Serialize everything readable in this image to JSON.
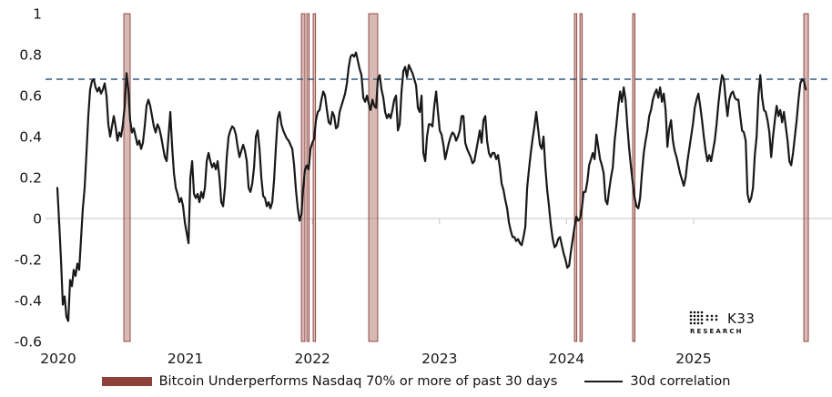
{
  "page": {
    "background": "#ffffff"
  },
  "legend": {
    "band_label": "Bitcoin Underperforms Nasdaq 70% or more of past 30 days",
    "line_label": "30d correlation"
  },
  "branding": {
    "logo_text": "K33",
    "logo_subtext": "RESEARCH"
  },
  "chart_data": {
    "type": "line",
    "title": "",
    "xlabel": "",
    "ylabel": "",
    "grid": "zero-line-only",
    "legend_position": "bottom-center",
    "x_axis": {
      "ticks": [
        2020,
        2021,
        2022,
        2023,
        2024,
        2025
      ],
      "tick_labels": [
        "2020",
        "2021",
        "2022",
        "2023",
        "2024",
        "2025"
      ],
      "range": [
        2019.9,
        2026.09
      ]
    },
    "y_axis": {
      "ticks": [
        1,
        0.8,
        0.6,
        0.4,
        0.2,
        0,
        -0.2,
        -0.4,
        -0.6
      ],
      "tick_labels": [
        "1",
        "0.8",
        "0.6",
        "0.4",
        "0.2",
        "0",
        "-0.2",
        "-0.4",
        "-0.6"
      ],
      "range": [
        -0.6,
        1
      ]
    },
    "threshold_line": {
      "value": 0.68,
      "style": "dashed",
      "color": "#35587d"
    },
    "zero_line": {
      "value": 0,
      "color": "#d9d9d9"
    },
    "bands": {
      "label": "Bitcoin Underperforms Nasdaq 70% or more of past 30 days",
      "fill": "rgba(156,79,71,0.40)",
      "edge": "#8c3f37",
      "ranges_year": [
        [
          2020.516,
          2020.566
        ],
        [
          2021.913,
          2021.941
        ],
        [
          2021.956,
          2021.974
        ],
        [
          2022.006,
          2022.02
        ],
        [
          2022.443,
          2022.514
        ],
        [
          2024.062,
          2024.076
        ],
        [
          2024.105,
          2024.119
        ],
        [
          2024.52,
          2024.534
        ],
        [
          2025.867,
          2025.903
        ]
      ]
    },
    "series": [
      {
        "name": "30d correlation",
        "color": "#191919",
        "x0_year": 2019.993,
        "dx_year": 0.01433,
        "values": [
          0.15,
          -0.02,
          -0.2,
          -0.42,
          -0.38,
          -0.48,
          -0.5,
          -0.3,
          -0.33,
          -0.25,
          -0.28,
          -0.22,
          -0.25,
          -0.1,
          0.05,
          0.15,
          0.32,
          0.5,
          0.63,
          0.67,
          0.68,
          0.64,
          0.62,
          0.64,
          0.61,
          0.63,
          0.66,
          0.6,
          0.46,
          0.4,
          0.45,
          0.5,
          0.45,
          0.38,
          0.42,
          0.4,
          0.46,
          0.55,
          0.71,
          0.63,
          0.48,
          0.42,
          0.44,
          0.4,
          0.36,
          0.38,
          0.34,
          0.37,
          0.45,
          0.55,
          0.58,
          0.55,
          0.5,
          0.45,
          0.42,
          0.46,
          0.44,
          0.4,
          0.35,
          0.3,
          0.28,
          0.4,
          0.52,
          0.35,
          0.22,
          0.15,
          0.12,
          0.08,
          0.1,
          0.06,
          -0.02,
          -0.07,
          -0.12,
          0.2,
          0.28,
          0.12,
          0.1,
          0.12,
          0.08,
          0.13,
          0.1,
          0.15,
          0.28,
          0.32,
          0.28,
          0.25,
          0.27,
          0.24,
          0.28,
          0.2,
          0.08,
          0.06,
          0.15,
          0.3,
          0.4,
          0.43,
          0.45,
          0.44,
          0.41,
          0.35,
          0.3,
          0.33,
          0.36,
          0.33,
          0.28,
          0.15,
          0.13,
          0.17,
          0.25,
          0.4,
          0.43,
          0.34,
          0.2,
          0.11,
          0.1,
          0.06,
          0.08,
          0.05,
          0.08,
          0.19,
          0.35,
          0.49,
          0.52,
          0.46,
          0.43,
          0.41,
          0.39,
          0.38,
          0.36,
          0.34,
          0.26,
          0.14,
          0.05,
          -0.01,
          0.02,
          0.15,
          0.24,
          0.26,
          0.24,
          0.34,
          0.37,
          0.39,
          0.48,
          0.52,
          0.53,
          0.58,
          0.62,
          0.6,
          0.53,
          0.47,
          0.46,
          0.52,
          0.5,
          0.44,
          0.45,
          0.52,
          0.55,
          0.58,
          0.61,
          0.66,
          0.74,
          0.79,
          0.8,
          0.79,
          0.81,
          0.77,
          0.73,
          0.7,
          0.59,
          0.57,
          0.6,
          0.56,
          0.53,
          0.58,
          0.55,
          0.54,
          0.68,
          0.7,
          0.63,
          0.59,
          0.52,
          0.49,
          0.51,
          0.49,
          0.53,
          0.58,
          0.6,
          0.43,
          0.46,
          0.62,
          0.72,
          0.74,
          0.69,
          0.75,
          0.73,
          0.71,
          0.68,
          0.65,
          0.54,
          0.52,
          0.6,
          0.32,
          0.28,
          0.4,
          0.46,
          0.46,
          0.45,
          0.55,
          0.62,
          0.52,
          0.43,
          0.41,
          0.36,
          0.29,
          0.33,
          0.37,
          0.4,
          0.42,
          0.41,
          0.38,
          0.4,
          0.43,
          0.5,
          0.5,
          0.37,
          0.34,
          0.32,
          0.3,
          0.27,
          0.28,
          0.33,
          0.38,
          0.43,
          0.37,
          0.48,
          0.5,
          0.38,
          0.32,
          0.3,
          0.32,
          0.32,
          0.29,
          0.31,
          0.25,
          0.17,
          0.14,
          0.09,
          0.05,
          -0.02,
          -0.06,
          -0.09,
          -0.09,
          -0.11,
          -0.1,
          -0.12,
          -0.13,
          -0.09,
          -0.04,
          0.15,
          0.24,
          0.32,
          0.39,
          0.45,
          0.52,
          0.44,
          0.36,
          0.34,
          0.4,
          0.25,
          0.14,
          0.06,
          -0.03,
          -0.1,
          -0.14,
          -0.13,
          -0.1,
          -0.09,
          -0.13,
          -0.17,
          -0.2,
          -0.24,
          -0.23,
          -0.16,
          -0.1,
          -0.04,
          0.01,
          -0.01,
          0.0,
          0.05,
          0.13,
          0.13,
          0.18,
          0.26,
          0.29,
          0.32,
          0.29,
          0.41,
          0.35,
          0.29,
          0.26,
          0.22,
          0.09,
          0.07,
          0.14,
          0.2,
          0.25,
          0.38,
          0.46,
          0.55,
          0.62,
          0.57,
          0.64,
          0.58,
          0.45,
          0.34,
          0.25,
          0.17,
          0.1,
          0.06,
          0.05,
          0.1,
          0.22,
          0.32,
          0.38,
          0.43,
          0.5,
          0.53,
          0.58,
          0.61,
          0.63,
          0.59,
          0.64,
          0.57,
          0.61,
          0.53,
          0.35,
          0.44,
          0.48,
          0.38,
          0.33,
          0.3,
          0.26,
          0.22,
          0.19,
          0.16,
          0.2,
          0.28,
          0.34,
          0.4,
          0.46,
          0.54,
          0.58,
          0.61,
          0.55,
          0.48,
          0.4,
          0.33,
          0.28,
          0.31,
          0.28,
          0.33,
          0.38,
          0.46,
          0.56,
          0.64,
          0.7,
          0.68,
          0.58,
          0.5,
          0.58,
          0.61,
          0.62,
          0.59,
          0.58,
          0.58,
          0.5,
          0.43,
          0.42,
          0.38,
          0.12,
          0.08,
          0.1,
          0.15,
          0.31,
          0.4,
          0.6,
          0.7,
          0.59,
          0.53,
          0.52,
          0.48,
          0.42,
          0.3,
          0.4,
          0.48,
          0.55,
          0.5,
          0.53,
          0.47,
          0.52,
          0.45,
          0.38,
          0.28,
          0.26,
          0.32,
          0.4,
          0.48,
          0.58,
          0.66,
          0.68,
          0.67,
          0.63
        ]
      }
    ]
  }
}
